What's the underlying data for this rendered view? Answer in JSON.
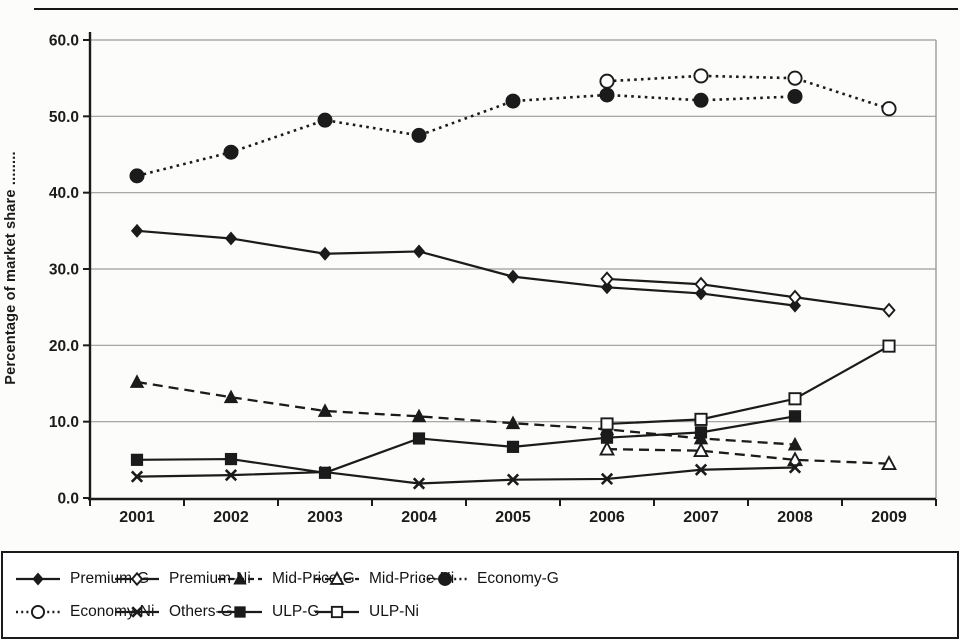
{
  "figure": {
    "background": "#fcfcfa",
    "ink": "#1b1b1b",
    "grid_color": "#9c9c9c"
  },
  "chart_data": {
    "type": "line",
    "title": "",
    "xlabel": "",
    "ylabel": "Percentage of market share ........",
    "ylim": [
      0,
      60
    ],
    "ytick_step": 10,
    "grid": true,
    "legend_position": "bottom-box",
    "categories": [
      "2001",
      "2002",
      "2003",
      "2004",
      "2005",
      "2006",
      "2007",
      "2008",
      "2009"
    ],
    "series": [
      {
        "name": "Premium-G",
        "line": "solid",
        "marker": "diamond",
        "fill": "filled",
        "values": [
          35.0,
          34.0,
          32.0,
          32.3,
          29.0,
          27.6,
          26.8,
          25.2,
          null
        ]
      },
      {
        "name": "Premium-Ni",
        "line": "solid",
        "marker": "diamond",
        "fill": "open",
        "values": [
          null,
          null,
          null,
          null,
          null,
          28.7,
          28.0,
          26.3,
          24.6
        ]
      },
      {
        "name": "Mid-Price-G",
        "line": "dashed",
        "marker": "triangle",
        "fill": "filled",
        "values": [
          15.2,
          13.2,
          11.4,
          10.7,
          9.8,
          9.0,
          7.8,
          7.0,
          null
        ]
      },
      {
        "name": "Mid-Price-Ni",
        "line": "dashed",
        "marker": "triangle",
        "fill": "open",
        "values": [
          null,
          null,
          null,
          null,
          null,
          6.4,
          6.2,
          5.0,
          4.5
        ]
      },
      {
        "name": "Economy-G",
        "line": "dotted",
        "marker": "circle",
        "fill": "filled",
        "values": [
          42.2,
          45.3,
          49.5,
          47.5,
          52.0,
          52.8,
          52.1,
          52.6,
          null
        ]
      },
      {
        "name": "Economy-Ni",
        "line": "dotted",
        "marker": "circle",
        "fill": "open",
        "values": [
          null,
          null,
          null,
          null,
          null,
          54.6,
          55.3,
          55.0,
          51.0
        ]
      },
      {
        "name": "Others-G",
        "line": "solid",
        "marker": "x",
        "fill": "filled",
        "values": [
          2.8,
          3.0,
          3.4,
          1.9,
          2.4,
          2.5,
          3.7,
          4.0,
          null
        ]
      },
      {
        "name": "ULP-G",
        "line": "solid",
        "marker": "square",
        "fill": "filled",
        "values": [
          5.0,
          5.1,
          3.3,
          7.8,
          6.7,
          7.9,
          8.6,
          10.7,
          null
        ]
      },
      {
        "name": "ULP-Ni",
        "line": "solid",
        "marker": "square",
        "fill": "open",
        "values": [
          null,
          null,
          null,
          null,
          null,
          9.7,
          10.3,
          13.0,
          19.9
        ]
      }
    ]
  }
}
